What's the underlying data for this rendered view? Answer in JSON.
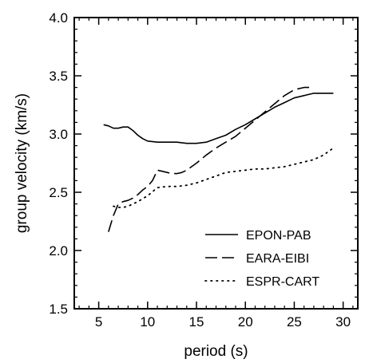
{
  "chart_data": {
    "type": "line",
    "xlabel": "period (s)",
    "ylabel": "group velocity (km/s)",
    "xlim": [
      2.5,
      31.5
    ],
    "ylim": [
      1.5,
      4.0
    ],
    "xticks": [
      5,
      10,
      15,
      20,
      25,
      30
    ],
    "yticks": [
      1.5,
      2.0,
      2.5,
      3.0,
      3.5,
      4.0
    ],
    "xtick_labels": [
      "5",
      "10",
      "15",
      "20",
      "25",
      "30"
    ],
    "ytick_labels": [
      "1.5",
      "2.0",
      "2.5",
      "3.0",
      "3.5",
      "4.0"
    ],
    "legend_position": "bottom-right",
    "grid": false,
    "series": [
      {
        "name": "EPON-PAB",
        "style": "solid",
        "x": [
          5.5,
          6.0,
          6.5,
          7.0,
          7.5,
          8.0,
          8.5,
          9.0,
          9.5,
          10.0,
          11.0,
          12.0,
          13.0,
          14.0,
          15.0,
          16.0,
          17.0,
          18.0,
          19.0,
          20.0,
          21.0,
          22.0,
          23.0,
          24.0,
          25.0,
          26.0,
          27.0,
          28.0,
          29.0
        ],
        "y": [
          3.08,
          3.07,
          3.05,
          3.05,
          3.06,
          3.06,
          3.03,
          2.99,
          2.96,
          2.94,
          2.93,
          2.93,
          2.93,
          2.92,
          2.92,
          2.93,
          2.96,
          2.99,
          3.04,
          3.08,
          3.13,
          3.18,
          3.23,
          3.27,
          3.31,
          3.33,
          3.35,
          3.35,
          3.35
        ]
      },
      {
        "name": "EARA-EIBI",
        "style": "dashed",
        "x": [
          6.0,
          6.5,
          7.0,
          7.5,
          8.0,
          8.5,
          9.0,
          9.5,
          10.0,
          10.5,
          11.0,
          11.5,
          12.0,
          12.5,
          13.0,
          13.5,
          14.0,
          15.0,
          16.0,
          17.0,
          18.0,
          19.0,
          20.0,
          21.0,
          22.0,
          23.0,
          24.0,
          25.0,
          26.0,
          27.0
        ],
        "y": [
          2.16,
          2.3,
          2.4,
          2.42,
          2.43,
          2.45,
          2.48,
          2.52,
          2.55,
          2.6,
          2.69,
          2.68,
          2.67,
          2.66,
          2.66,
          2.67,
          2.69,
          2.75,
          2.82,
          2.88,
          2.93,
          2.98,
          3.05,
          3.12,
          3.19,
          3.26,
          3.33,
          3.38,
          3.4,
          3.4
        ]
      },
      {
        "name": "ESPR-CART",
        "style": "dotted",
        "x": [
          6.5,
          7.0,
          7.5,
          8.0,
          9.0,
          10.0,
          11.0,
          12.0,
          13.0,
          14.0,
          15.0,
          16.0,
          17.0,
          18.0,
          19.0,
          20.0,
          21.0,
          22.0,
          23.0,
          24.0,
          25.0,
          26.0,
          27.0,
          28.0,
          29.0
        ],
        "y": [
          2.38,
          2.37,
          2.37,
          2.38,
          2.42,
          2.47,
          2.54,
          2.55,
          2.55,
          2.56,
          2.58,
          2.61,
          2.64,
          2.67,
          2.68,
          2.69,
          2.7,
          2.7,
          2.71,
          2.72,
          2.74,
          2.76,
          2.78,
          2.82,
          2.88
        ]
      }
    ]
  }
}
